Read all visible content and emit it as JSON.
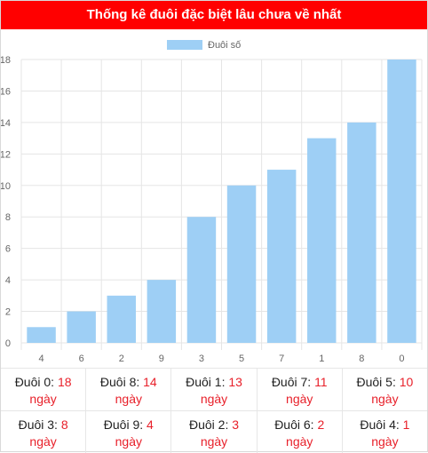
{
  "header": {
    "title": "Thống kê đuôi đặc biệt lâu chưa về nhất"
  },
  "chart_data": {
    "type": "bar",
    "categories": [
      "4",
      "6",
      "2",
      "9",
      "3",
      "5",
      "7",
      "1",
      "8",
      "0"
    ],
    "series": [
      {
        "name": "Đuôi số",
        "values": [
          1,
          2,
          3,
          4,
          8,
          10,
          11,
          13,
          14,
          18
        ],
        "color": "#9ecff5"
      }
    ],
    "ylim": [
      0,
      18
    ],
    "yticks": [
      0,
      2,
      4,
      6,
      8,
      10,
      12,
      14,
      16,
      18
    ],
    "grid": true,
    "legend_position": "top"
  },
  "stats": [
    [
      {
        "label": "Đuôi 0:",
        "value": "18",
        "unit": "ngày"
      },
      {
        "label": "Đuôi 8:",
        "value": "14",
        "unit": "ngày"
      },
      {
        "label": "Đuôi 1:",
        "value": "13",
        "unit": "ngày"
      },
      {
        "label": "Đuôi 7:",
        "value": "11",
        "unit": "ngày"
      },
      {
        "label": "Đuôi 5:",
        "value": "10",
        "unit": "ngày"
      }
    ],
    [
      {
        "label": "Đuôi 3:",
        "value": "8",
        "unit": "ngày"
      },
      {
        "label": "Đuôi 9:",
        "value": "4",
        "unit": "ngày"
      },
      {
        "label": "Đuôi 2:",
        "value": "3",
        "unit": "ngày"
      },
      {
        "label": "Đuôi 6:",
        "value": "2",
        "unit": "ngày"
      },
      {
        "label": "Đuôi 4:",
        "value": "1",
        "unit": "ngày"
      }
    ]
  ],
  "colors": {
    "header": "#ff0000",
    "accent": "#e8202a",
    "bar": "#9ecff5"
  }
}
